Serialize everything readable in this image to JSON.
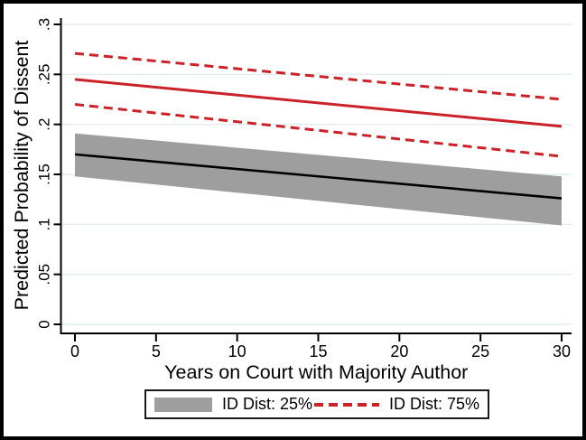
{
  "figure": {
    "background": "#ffffff",
    "border_color": "#000000"
  },
  "colors": {
    "red": "#cb2229",
    "black_line": "#000000",
    "band_gray": "#9e9e9e",
    "gridline": "#e2ebee",
    "axis": "#000000",
    "text": "#000000"
  },
  "chart_data": {
    "type": "line",
    "title": "",
    "xlabel": "Years on Court with Majority Author",
    "ylabel": "Predicted Probability of Dissent",
    "xlim": [
      0,
      30
    ],
    "ylim": [
      0,
      0.3
    ],
    "grid": true,
    "x_ticks": [
      0,
      5,
      10,
      15,
      20,
      25,
      30
    ],
    "x_tick_labels": [
      "0",
      "5",
      "10",
      "15",
      "20",
      "25",
      "30"
    ],
    "y_ticks": [
      0,
      0.05,
      0.1,
      0.15,
      0.2,
      0.25,
      0.3
    ],
    "y_tick_labels": [
      "0",
      ".05",
      ".1",
      ".15",
      ".2",
      ".25",
      ".3"
    ],
    "x": [
      0,
      30
    ],
    "series": [
      {
        "name": "ID Dist: 25%",
        "line_style": "solid",
        "line_color": "#000000",
        "y": [
          0.17,
          0.126
        ],
        "ci_lower": [
          0.148,
          0.099
        ],
        "ci_upper": [
          0.191,
          0.148
        ],
        "ci_style": "band",
        "ci_color": "#9e9e9e"
      },
      {
        "name": "ID Dist: 75%",
        "line_style": "solid",
        "line_color": "#cb2229",
        "y": [
          0.245,
          0.198
        ],
        "ci_lower": [
          0.22,
          0.168
        ],
        "ci_upper": [
          0.271,
          0.225
        ],
        "ci_style": "dashed",
        "ci_color": "#cb2229"
      }
    ],
    "legend": {
      "position": "bottom",
      "items": [
        {
          "label": "ID Dist: 25%",
          "swatch": "gray-band"
        },
        {
          "label": "ID Dist: 75%",
          "swatch": "red-dashed-line"
        }
      ]
    }
  }
}
